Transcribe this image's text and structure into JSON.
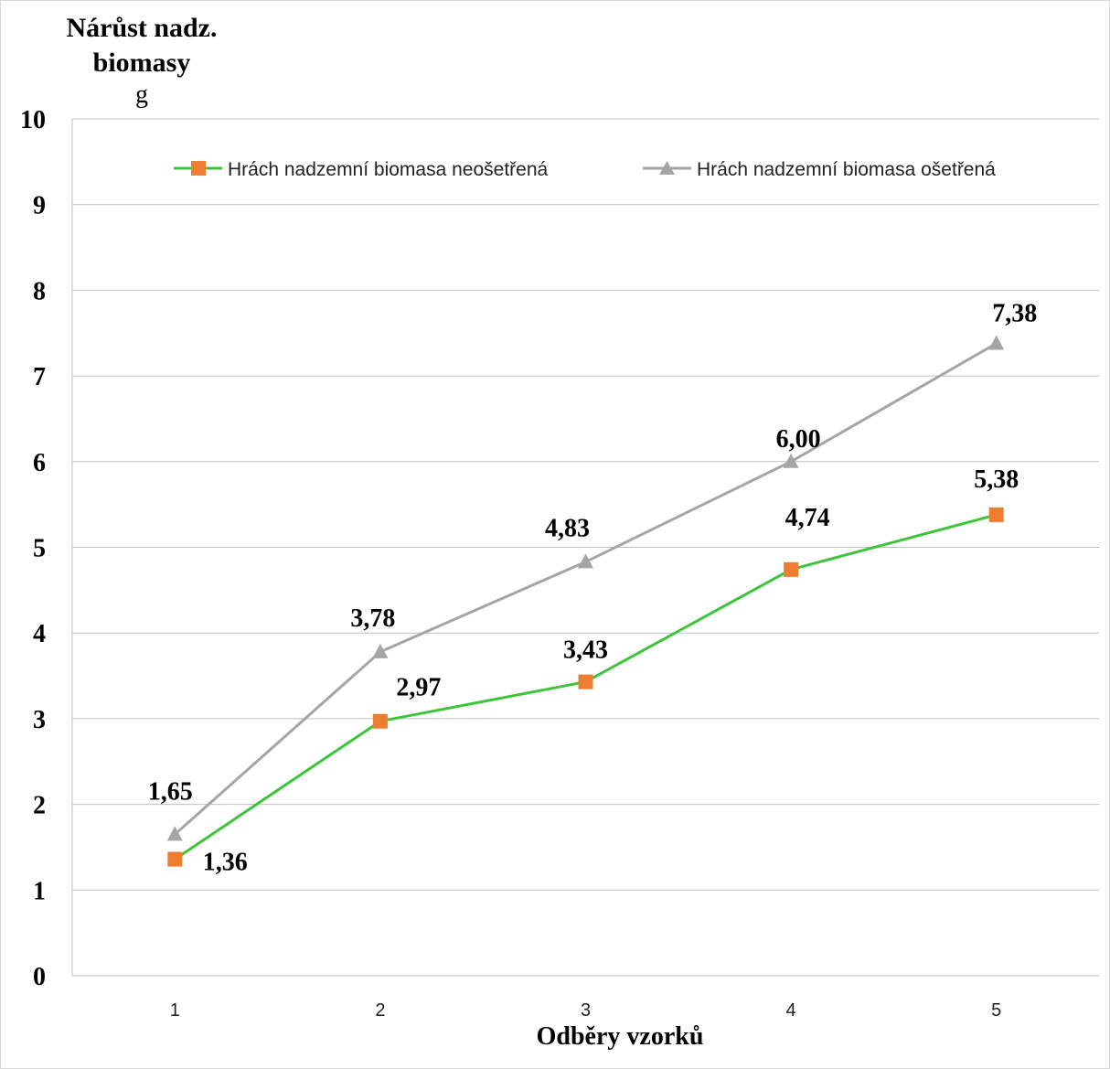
{
  "chart_data": {
    "type": "line",
    "ylabel_lines": [
      "Nárůst nadz.",
      "biomasy"
    ],
    "yunit": "g",
    "xlabel": "Odběry vzorků",
    "categories": [
      "1",
      "2",
      "3",
      "4",
      "5"
    ],
    "yticks": [
      "0",
      "1",
      "2",
      "3",
      "4",
      "5",
      "6",
      "7",
      "8",
      "9",
      "10"
    ],
    "ylim": [
      0,
      10
    ],
    "grid": true,
    "legend_position": "top",
    "series": [
      {
        "name": "Hrách nadzemní biomasa neošetřená",
        "values": [
          1.36,
          2.97,
          3.43,
          4.74,
          5.38
        ],
        "labels": [
          "1,36",
          "2,97",
          "3,43",
          "4,74",
          "5,38"
        ],
        "line_color": "#3ec43b",
        "marker": "square",
        "marker_color": "#ed7d31"
      },
      {
        "name": "Hrách nadzemní biomasa ošetřená",
        "values": [
          1.65,
          3.78,
          4.83,
          6.0,
          7.38
        ],
        "labels": [
          "1,65",
          "3,78",
          "4,83",
          "6,00",
          "7,38"
        ],
        "line_color": "#a5a5a5",
        "marker": "triangle",
        "marker_color": "#a5a5a5"
      }
    ]
  }
}
